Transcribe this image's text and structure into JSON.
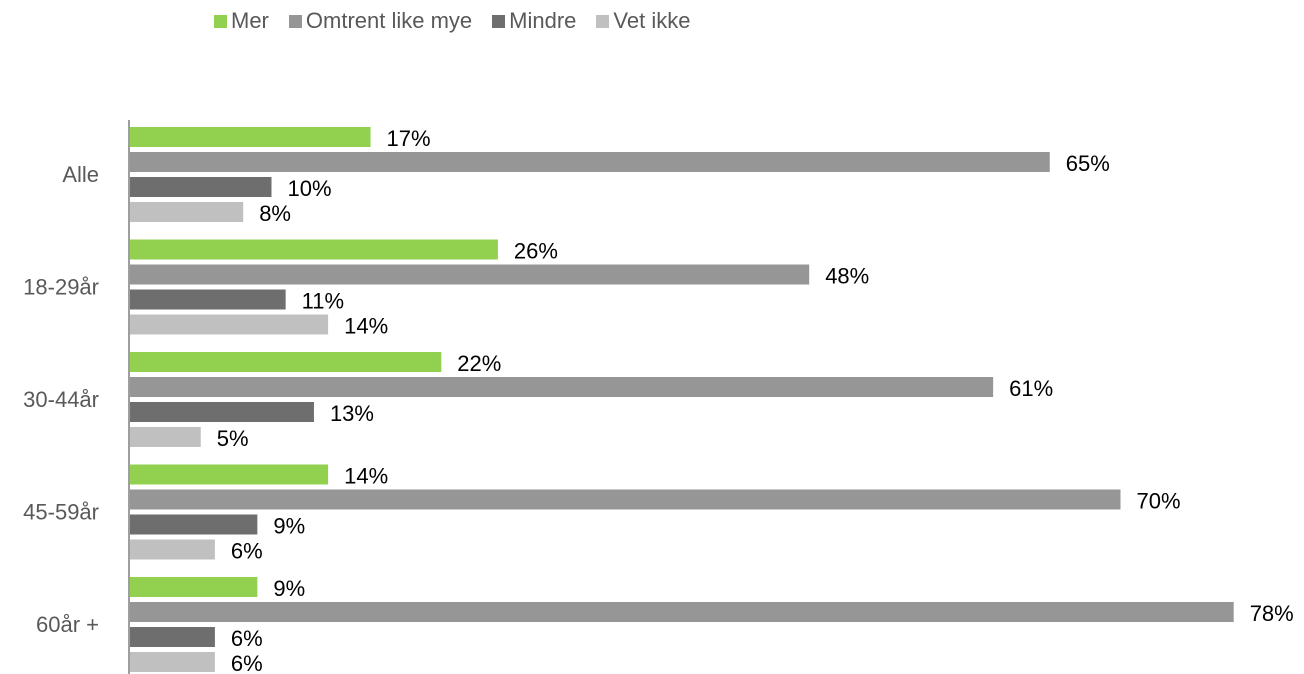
{
  "chart_data": {
    "type": "bar",
    "orientation": "horizontal",
    "categories": [
      "Alle",
      "18-29år",
      "30-44år",
      "45-59år",
      "60år +"
    ],
    "series": [
      {
        "name": "Mer",
        "color": "#92d050",
        "values": [
          17,
          26,
          22,
          14,
          9
        ]
      },
      {
        "name": "Omtrent like mye",
        "color": "#969696",
        "values": [
          65,
          48,
          61,
          70,
          78
        ]
      },
      {
        "name": "Mindre",
        "color": "#6e6e6e",
        "values": [
          10,
          11,
          13,
          9,
          6
        ]
      },
      {
        "name": "Vet ikke",
        "color": "#c0c0c0",
        "values": [
          8,
          14,
          5,
          6,
          6
        ]
      }
    ],
    "value_suffix": "%",
    "xlim": [
      0,
      100
    ],
    "grid": false,
    "legend_position": "top"
  }
}
